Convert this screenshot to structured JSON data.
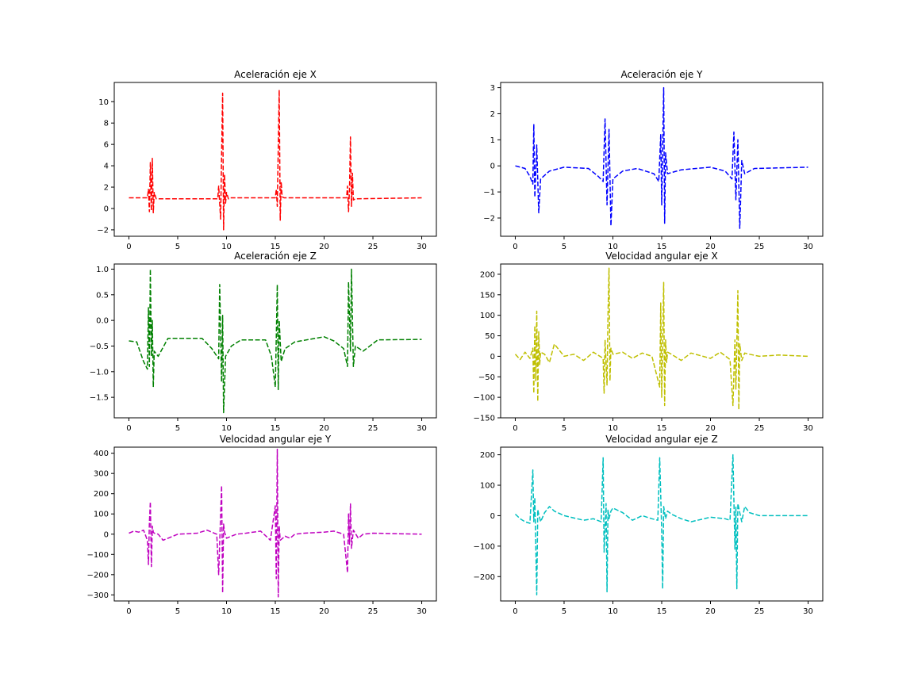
{
  "figure": {
    "background": "#ffffff"
  },
  "chart_data": [
    {
      "type": "line",
      "title": "Aceleración eje X",
      "color": "#ff0000",
      "line_style": "dashed",
      "xlim": [
        -1.5,
        31.5
      ],
      "ylim": [
        -2.6,
        11.8
      ],
      "xticks": [
        0,
        5,
        10,
        15,
        20,
        25,
        30
      ],
      "yticks": [
        -2,
        0,
        2,
        4,
        6,
        8,
        10
      ],
      "grid": false,
      "series": [
        {
          "x": [
            0,
            1.9,
            2.0,
            2.1,
            2.2,
            2.3,
            2.4,
            2.5,
            2.6,
            2.8,
            9.1,
            9.2,
            9.4,
            9.5,
            9.6,
            9.7,
            9.8,
            9.9,
            10.0,
            10.2,
            10.4,
            15.0,
            15.1,
            15.2,
            15.3,
            15.4,
            15.5,
            15.6,
            15.7,
            15.9,
            22.3,
            22.4,
            22.5,
            22.6,
            22.7,
            22.8,
            22.9,
            23.0,
            23.2,
            30
          ],
          "y": [
            1.0,
            1.0,
            1.8,
            -0.3,
            4.3,
            -0.2,
            4.7,
            -0.4,
            1.5,
            0.9,
            0.9,
            2.1,
            -1.0,
            5.0,
            10.8,
            -2.0,
            3.2,
            0.5,
            1.5,
            0.9,
            1.0,
            1.0,
            1.8,
            0.2,
            5.6,
            11.1,
            -1.1,
            2.5,
            1.1,
            1.0,
            1.0,
            2.1,
            -0.3,
            1.8,
            6.7,
            0.2,
            3.3,
            0.8,
            0.9,
            1.0
          ]
        }
      ]
    },
    {
      "type": "line",
      "title": "Aceleración eje Y",
      "color": "#0000ff",
      "line_style": "dashed",
      "xlim": [
        -1.5,
        31.5
      ],
      "ylim": [
        -2.7,
        3.2
      ],
      "xticks": [
        0,
        5,
        10,
        15,
        20,
        25,
        30
      ],
      "yticks": [
        -2,
        -1,
        0,
        1,
        2,
        3
      ],
      "grid": false,
      "series": [
        {
          "x": [
            0,
            1.0,
            1.5,
            1.8,
            1.9,
            2.0,
            2.2,
            2.4,
            2.6,
            3.5,
            5.0,
            7.5,
            8.5,
            9.0,
            9.2,
            9.4,
            9.6,
            9.8,
            10.0,
            11.0,
            12.5,
            14.2,
            14.7,
            14.9,
            15.0,
            15.2,
            15.3,
            15.4,
            15.6,
            17.0,
            20.0,
            21.5,
            22.2,
            22.4,
            22.6,
            22.8,
            23.0,
            23.2,
            23.5,
            24.5,
            30
          ],
          "y": [
            0.0,
            -0.1,
            -0.4,
            -0.7,
            1.6,
            -1.2,
            0.8,
            -1.8,
            -0.5,
            -0.2,
            -0.05,
            -0.1,
            -0.4,
            -0.6,
            1.8,
            -1.5,
            1.4,
            -2.3,
            -0.5,
            -0.2,
            -0.1,
            -0.3,
            -0.6,
            1.2,
            -1.5,
            3.0,
            -2.2,
            0.5,
            -0.3,
            -0.15,
            -0.05,
            -0.2,
            -0.5,
            1.3,
            -1.3,
            1.0,
            -2.4,
            0.2,
            -0.3,
            -0.1,
            -0.05
          ]
        }
      ]
    },
    {
      "type": "line",
      "title": "Aceleración eje Z",
      "color": "#008000",
      "line_style": "dashed",
      "xlim": [
        -1.5,
        31.5
      ],
      "ylim": [
        -1.9,
        1.1
      ],
      "xticks": [
        0,
        5,
        10,
        15,
        20,
        25,
        30
      ],
      "yticks": [
        -1.5,
        -1.0,
        -0.5,
        0.0,
        0.5,
        1.0
      ],
      "grid": false,
      "series": [
        {
          "x": [
            0,
            0.8,
            1.5,
            1.9,
            2.0,
            2.1,
            2.2,
            2.3,
            2.4,
            2.5,
            2.6,
            3.0,
            4.0,
            7.5,
            8.5,
            9.2,
            9.3,
            9.5,
            9.6,
            9.7,
            9.9,
            10.5,
            11.5,
            14.0,
            14.6,
            15.0,
            15.2,
            15.3,
            15.4,
            15.6,
            16.0,
            17.0,
            20.0,
            21.0,
            22.0,
            22.4,
            22.5,
            22.7,
            22.8,
            23.0,
            23.2,
            24.0,
            25.5,
            30
          ],
          "y": [
            -0.4,
            -0.42,
            -0.8,
            -0.95,
            0.25,
            -0.9,
            1.0,
            -0.7,
            0.0,
            -1.3,
            -0.6,
            -0.7,
            -0.35,
            -0.35,
            -0.55,
            -0.75,
            0.7,
            -1.2,
            0.1,
            -1.8,
            -0.7,
            -0.5,
            -0.38,
            -0.38,
            -0.7,
            -1.3,
            0.7,
            -1.35,
            0.0,
            -0.8,
            -0.55,
            -0.42,
            -0.32,
            -0.4,
            -0.55,
            -0.9,
            0.75,
            -0.6,
            1.0,
            -0.9,
            -0.5,
            -0.6,
            -0.38,
            -0.37
          ]
        }
      ]
    },
    {
      "type": "line",
      "title": "Velocidad angular eje X",
      "color": "#bfbf00",
      "line_style": "dashed",
      "xlim": [
        -1.5,
        31.5
      ],
      "ylim": [
        -150,
        225
      ],
      "xticks": [
        0,
        5,
        10,
        15,
        20,
        25,
        30
      ],
      "yticks": [
        -150,
        -100,
        -50,
        0,
        50,
        100,
        150,
        200
      ],
      "grid": false,
      "series": [
        {
          "x": [
            0,
            0.5,
            1.0,
            1.5,
            1.8,
            1.9,
            2.0,
            2.1,
            2.2,
            2.3,
            2.4,
            2.5,
            2.6,
            3.0,
            3.5,
            4.0,
            5.0,
            6.0,
            7.0,
            8.0,
            9.0,
            9.1,
            9.2,
            9.4,
            9.5,
            9.6,
            9.7,
            9.8,
            10.0,
            11.0,
            12.0,
            13.0,
            14.0,
            14.8,
            14.9,
            15.0,
            15.2,
            15.3,
            15.4,
            15.5,
            15.6,
            16.0,
            17.0,
            18.0,
            20.0,
            21.0,
            22.0,
            22.3,
            22.5,
            22.6,
            22.8,
            22.9,
            23.0,
            23.2,
            23.5,
            24.0,
            25.0,
            27.0,
            30
          ],
          "y": [
            5,
            -8,
            10,
            -5,
            20,
            -90,
            75,
            -60,
            110,
            -110,
            60,
            -20,
            10,
            5,
            -15,
            30,
            0,
            5,
            -10,
            10,
            -5,
            -90,
            40,
            -70,
            100,
            215,
            -60,
            20,
            5,
            10,
            -5,
            8,
            0,
            -75,
            130,
            -100,
            180,
            -120,
            40,
            -15,
            10,
            5,
            -10,
            8,
            -5,
            10,
            -8,
            -120,
            40,
            -80,
            160,
            -130,
            30,
            -10,
            8,
            5,
            0,
            3,
            0
          ]
        }
      ]
    },
    {
      "type": "line",
      "title": "Velocidad angular eje Y",
      "color": "#bf00bf",
      "line_style": "dashed",
      "xlim": [
        -1.5,
        31.5
      ],
      "ylim": [
        -330,
        430
      ],
      "xticks": [
        0,
        5,
        10,
        15,
        20,
        25,
        30
      ],
      "yticks": [
        -300,
        -200,
        -100,
        0,
        100,
        200,
        300,
        400
      ],
      "grid": false,
      "series": [
        {
          "x": [
            0,
            0.5,
            1.0,
            1.5,
            1.9,
            2.0,
            2.1,
            2.2,
            2.3,
            2.4,
            2.5,
            2.6,
            3.0,
            3.5,
            4.0,
            5.0,
            7.0,
            8.0,
            9.0,
            9.2,
            9.4,
            9.5,
            9.6,
            9.7,
            9.8,
            10.0,
            10.5,
            11.0,
            12.0,
            13.5,
            14.5,
            15.0,
            15.1,
            15.2,
            15.3,
            15.4,
            15.5,
            16.0,
            16.5,
            17.0,
            18.0,
            20.0,
            21.0,
            22.0,
            22.4,
            22.5,
            22.6,
            22.7,
            22.8,
            23.0,
            23.5,
            24.0,
            25.0,
            30
          ],
          "y": [
            5,
            15,
            10,
            20,
            -30,
            -150,
            60,
            160,
            -160,
            40,
            10,
            5,
            0,
            -30,
            -20,
            0,
            5,
            20,
            0,
            -200,
            100,
            240,
            -290,
            50,
            10,
            -20,
            -10,
            0,
            5,
            15,
            -30,
            140,
            -220,
            420,
            -310,
            40,
            -30,
            -10,
            -20,
            0,
            5,
            10,
            15,
            0,
            -190,
            100,
            -50,
            150,
            -70,
            20,
            -20,
            0,
            5,
            0
          ]
        }
      ]
    },
    {
      "type": "line",
      "title": "Velocidad angular eje Z",
      "color": "#00bfbf",
      "line_style": "dashed",
      "xlim": [
        -1.5,
        31.5
      ],
      "ylim": [
        -280,
        225
      ],
      "xticks": [
        0,
        5,
        10,
        15,
        20,
        25,
        30
      ],
      "yticks": [
        -200,
        -100,
        0,
        100,
        200
      ],
      "grid": false,
      "series": [
        {
          "x": [
            0,
            0.5,
            1.0,
            1.5,
            1.8,
            1.9,
            2.0,
            2.2,
            2.3,
            2.4,
            2.6,
            3.0,
            3.5,
            4.0,
            5.0,
            7.0,
            8.0,
            8.8,
            9.0,
            9.1,
            9.3,
            9.4,
            9.5,
            9.6,
            9.8,
            10.0,
            11.0,
            12.0,
            13.0,
            14.0,
            14.6,
            14.8,
            15.0,
            15.1,
            15.2,
            15.4,
            15.6,
            16.0,
            17.0,
            18.0,
            20.0,
            21.5,
            22.0,
            22.3,
            22.5,
            22.6,
            22.7,
            22.8,
            23.0,
            23.2,
            23.5,
            24.0,
            25.0,
            30
          ],
          "y": [
            5,
            -10,
            -20,
            -25,
            150,
            -20,
            60,
            -260,
            20,
            5,
            -20,
            10,
            30,
            15,
            0,
            -15,
            -10,
            -20,
            190,
            -120,
            40,
            -250,
            20,
            -10,
            15,
            25,
            10,
            -15,
            0,
            -10,
            -15,
            190,
            -50,
            -240,
            30,
            -10,
            15,
            5,
            -10,
            -20,
            -5,
            -10,
            -15,
            200,
            -110,
            30,
            -240,
            40,
            10,
            -20,
            30,
            10,
            0,
            0
          ]
        }
      ]
    }
  ]
}
